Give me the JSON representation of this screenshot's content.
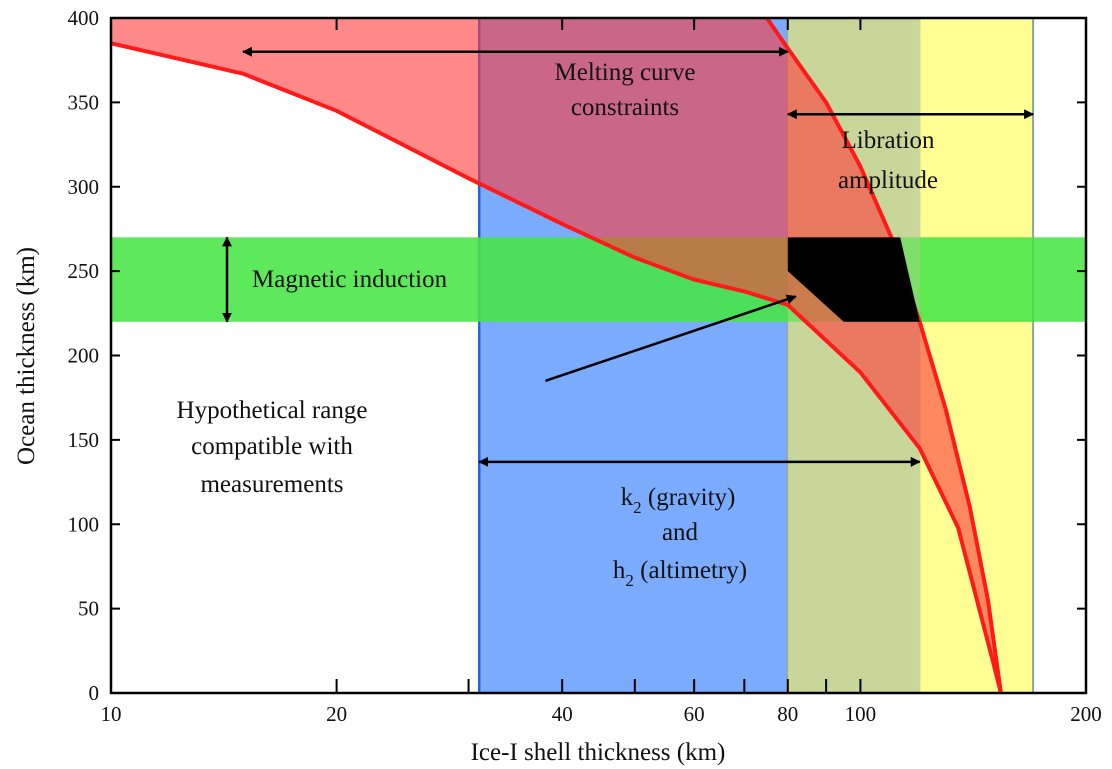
{
  "chart_data": {
    "type": "area",
    "xlabel": "Ice-I shell thickness (km)",
    "ylabel": "Ocean thickness (km)",
    "x_scale": "log",
    "xlim": [
      10,
      200
    ],
    "ylim": [
      0,
      400
    ],
    "x_ticks": [
      10,
      20,
      40,
      60,
      80,
      100,
      200
    ],
    "x_minor_ticks": [
      30,
      50,
      70,
      90
    ],
    "y_ticks": [
      0,
      50,
      100,
      150,
      200,
      250,
      300,
      350,
      400
    ],
    "grid": false,
    "constraint_bands": [
      {
        "name": "k2 / h2",
        "axis": "x",
        "range": [
          31,
          120
        ],
        "color": "#7aabfd"
      },
      {
        "name": "Libration amplitude",
        "axis": "x",
        "range": [
          80,
          170
        ],
        "color": "#ffff80"
      },
      {
        "name": "Magnetic induction",
        "axis": "y",
        "range": [
          220,
          270
        ],
        "color": "#47e545"
      }
    ],
    "melting_curve_lower": {
      "color": "#ff1a1a",
      "points": [
        [
          10,
          385
        ],
        [
          15,
          367
        ],
        [
          20,
          345
        ],
        [
          30,
          305
        ],
        [
          40,
          278
        ],
        [
          50,
          258
        ],
        [
          60,
          245
        ],
        [
          70,
          238
        ],
        [
          80,
          230
        ],
        [
          100,
          190
        ],
        [
          120,
          145
        ],
        [
          135,
          98
        ],
        [
          150,
          20
        ],
        [
          154,
          0
        ]
      ]
    },
    "melting_curve_upper": {
      "color": "#ff1a1a",
      "points": [
        [
          75,
          400
        ],
        [
          80,
          382
        ],
        [
          90,
          350
        ],
        [
          100,
          312
        ],
        [
          110,
          270
        ],
        [
          120,
          220
        ],
        [
          130,
          168
        ],
        [
          140,
          110
        ],
        [
          148,
          55
        ],
        [
          154,
          0
        ]
      ]
    },
    "compatible_region": {
      "color": "#000000",
      "points": [
        [
          80,
          270
        ],
        [
          113,
          270
        ],
        [
          120,
          220
        ],
        [
          95,
          220
        ],
        [
          80,
          250
        ]
      ]
    },
    "annotations": {
      "melting": [
        "Melting curve",
        "constraints"
      ],
      "libration": [
        "Libration",
        "amplitude"
      ],
      "magnetic": "Magnetic induction",
      "hypothetical": [
        "Hypothetical range",
        "compatible with",
        "measurements"
      ],
      "k2_main": "k",
      "k2_sub": "2",
      "k2_rest": " (gravity)",
      "and_word": "and",
      "h2_main": "h",
      "h2_sub": "2",
      "h2_rest": " (altimetry)"
    },
    "arrows": [
      {
        "name": "melting-curve-arrow",
        "from": [
          15,
          380
        ],
        "to": [
          80,
          380
        ]
      },
      {
        "name": "libration-arrow",
        "from": [
          80,
          343
        ],
        "to": [
          170,
          343
        ]
      },
      {
        "name": "magnetic-arrow",
        "from": [
          14,
          270
        ],
        "to": [
          14,
          220
        ],
        "axis": "vertical"
      },
      {
        "name": "k2-h2-arrow",
        "from": [
          31,
          137
        ],
        "to": [
          120,
          137
        ]
      },
      {
        "name": "hypothetical-arrow",
        "from": [
          38,
          185
        ],
        "to": [
          82,
          235
        ]
      }
    ]
  }
}
